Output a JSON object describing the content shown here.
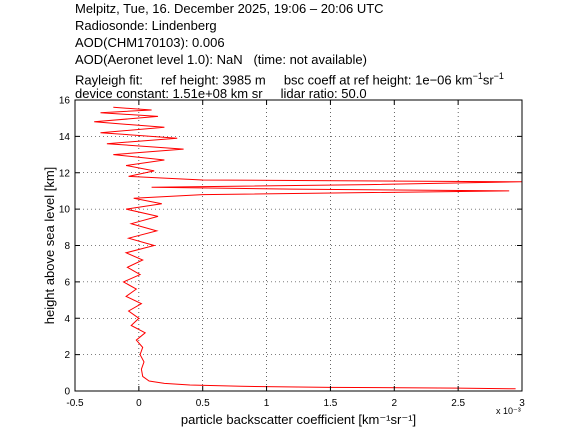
{
  "header": {
    "line1": "Melpitz, Tue, 16. December 2025, 19:06 – 20:06 UTC",
    "line2": "Radiosonde: Lindenberg",
    "line3": "AOD(CHM170103): 0.006",
    "line4": "AOD(Aeronet level 1.0): NaN   (time: not available)",
    "line5_a": "Rayleigh fit:     ref height: 3985 m     bsc coeff at ref height: 1e−06 km",
    "line5_b": "sr",
    "line6": "device constant: 1.51e+08 km sr     lidar ratio: 50.0"
  },
  "chart_data": {
    "type": "line",
    "xlabel": "particle backscatter coefficient [km⁻¹sr⁻¹]",
    "ylabel": "height above sea level [km]",
    "x_exponent_label": "x 10⁻³",
    "xlim": [
      -0.0005,
      0.003
    ],
    "ylim": [
      0,
      16
    ],
    "xticks": [
      -0.5,
      0,
      0.5,
      1,
      1.5,
      2,
      2.5,
      3
    ],
    "yticks": [
      0,
      2,
      4,
      6,
      8,
      10,
      12,
      14,
      16
    ],
    "grid": true,
    "series": [
      {
        "color": "#ff0000",
        "points": [
          [
            0.00295,
            0.12
          ],
          [
            0.0025,
            0.16
          ],
          [
            0.0015,
            0.2
          ],
          [
            0.0008,
            0.26
          ],
          [
            0.0004,
            0.33
          ],
          [
            0.0002,
            0.42
          ],
          [
            8e-05,
            0.55
          ],
          [
            3e-05,
            0.8
          ],
          [
            2e-05,
            1.2
          ],
          [
            4e-05,
            1.6
          ],
          [
            1e-05,
            2.0
          ],
          [
            3e-05,
            2.4
          ],
          [
            -2e-05,
            2.8
          ],
          [
            5e-05,
            3.2
          ],
          [
            -6e-05,
            3.6
          ],
          [
            0.0,
            4.0
          ],
          [
            -8e-05,
            4.4
          ],
          [
            2e-05,
            4.8
          ],
          [
            -0.0001,
            5.2
          ],
          [
            -2e-05,
            5.6
          ],
          [
            -0.00012,
            6.0
          ],
          [
            1e-05,
            6.4
          ],
          [
            -9e-05,
            6.8
          ],
          [
            3e-05,
            7.2
          ],
          [
            -0.0001,
            7.6
          ],
          [
            0.00012,
            8.0
          ],
          [
            -8e-05,
            8.4
          ],
          [
            0.00014,
            8.8
          ],
          [
            -6e-05,
            9.2
          ],
          [
            0.00015,
            9.6
          ],
          [
            -0.0001,
            10.0
          ],
          [
            0.00018,
            10.3
          ],
          [
            -4e-05,
            10.6
          ],
          [
            0.0005,
            10.8
          ],
          [
            0.0029,
            11.0
          ],
          [
            0.0012,
            11.1
          ],
          [
            0.0001,
            11.2
          ],
          [
            0.0018,
            11.35
          ],
          [
            0.003,
            11.5
          ],
          [
            0.0005,
            11.6
          ],
          [
            -8e-05,
            11.8
          ],
          [
            0.00012,
            12.1
          ],
          [
            -0.0001,
            12.4
          ],
          [
            0.0002,
            12.7
          ],
          [
            -0.0002,
            13.0
          ],
          [
            0.00035,
            13.3
          ],
          [
            -0.00025,
            13.6
          ],
          [
            0.0003,
            13.9
          ],
          [
            -0.0003,
            14.2
          ],
          [
            0.0002,
            14.5
          ],
          [
            -0.00035,
            14.8
          ],
          [
            0.00015,
            15.1
          ],
          [
            -0.0003,
            15.3
          ],
          [
            0.0001,
            15.45
          ],
          [
            -0.0002,
            15.6
          ]
        ]
      }
    ]
  }
}
